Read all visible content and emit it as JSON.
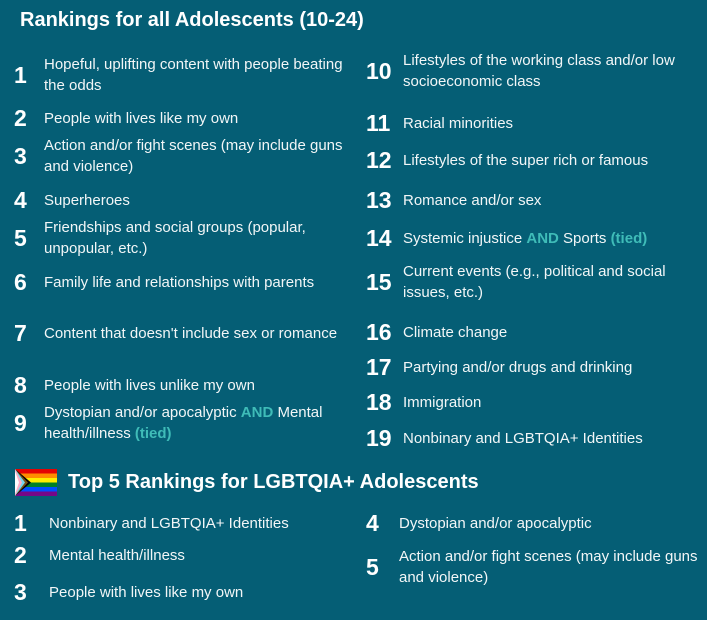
{
  "all_title": "Rankings for all Adolescents (10-24)",
  "lgbt_title": "Top 5 Rankings for LGBTQIA+ Adolescents",
  "accent_color": "#3fbcb8",
  "background_color": "#055e75",
  "flag_icon": "progress-pride-flag",
  "all_rankings": [
    {
      "rank": "1",
      "parts": [
        {
          "t": "Hopeful, uplifting content with people beating the odds"
        }
      ]
    },
    {
      "rank": "2",
      "parts": [
        {
          "t": "People with lives like my own"
        }
      ]
    },
    {
      "rank": "3",
      "parts": [
        {
          "t": "Action and/or fight scenes (may include guns and violence)"
        }
      ]
    },
    {
      "rank": "4",
      "parts": [
        {
          "t": "Superheroes"
        }
      ]
    },
    {
      "rank": "5",
      "parts": [
        {
          "t": "Friendships and social groups (popular, unpopular, etc.)"
        }
      ]
    },
    {
      "rank": "6",
      "parts": [
        {
          "t": "Family life and relationships with parents"
        }
      ]
    },
    {
      "rank": "7",
      "parts": [
        {
          "t": "Content that doesn't include sex or romance"
        }
      ]
    },
    {
      "rank": "8",
      "parts": [
        {
          "t": "People with lives unlike my own"
        }
      ]
    },
    {
      "rank": "9",
      "parts": [
        {
          "t": "Dystopian and/or apocalyptic "
        },
        {
          "t": "AND",
          "hl": true
        },
        {
          "t": " Mental health/illness "
        },
        {
          "t": "(tied)",
          "hl": true
        }
      ]
    },
    {
      "rank": "10",
      "parts": [
        {
          "t": "Lifestyles of the working class and/or low socioeconomic class"
        }
      ]
    },
    {
      "rank": "11",
      "parts": [
        {
          "t": "Racial minorities"
        }
      ]
    },
    {
      "rank": "12",
      "parts": [
        {
          "t": "Lifestyles of the super rich or famous"
        }
      ]
    },
    {
      "rank": "13",
      "parts": [
        {
          "t": "Romance and/or sex"
        }
      ]
    },
    {
      "rank": "14",
      "parts": [
        {
          "t": "Systemic injustice "
        },
        {
          "t": "AND",
          "hl": true
        },
        {
          "t": " Sports "
        },
        {
          "t": "(tied)",
          "hl": true
        }
      ]
    },
    {
      "rank": "15",
      "parts": [
        {
          "t": "Current events (e.g., political and social issues, etc.)"
        }
      ]
    },
    {
      "rank": "16",
      "parts": [
        {
          "t": "Climate change"
        }
      ]
    },
    {
      "rank": "17",
      "parts": [
        {
          "t": "Partying and/or drugs and drinking"
        }
      ]
    },
    {
      "rank": "18",
      "parts": [
        {
          "t": "Immigration"
        }
      ]
    },
    {
      "rank": "19",
      "parts": [
        {
          "t": "Nonbinary and LGBTQIA+ Identities"
        }
      ]
    }
  ],
  "lgbt_rankings": [
    {
      "rank": "1",
      "parts": [
        {
          "t": "Nonbinary and LGBTQIA+ Identities"
        }
      ]
    },
    {
      "rank": "2",
      "parts": [
        {
          "t": "Mental health/illness"
        }
      ]
    },
    {
      "rank": "3",
      "parts": [
        {
          "t": "People with lives like my own"
        }
      ]
    },
    {
      "rank": "4",
      "parts": [
        {
          "t": "Dystopian and/or apocalyptic"
        }
      ]
    },
    {
      "rank": "5",
      "parts": [
        {
          "t": "Action and/or fight scenes (may include guns and violence)"
        }
      ]
    }
  ]
}
